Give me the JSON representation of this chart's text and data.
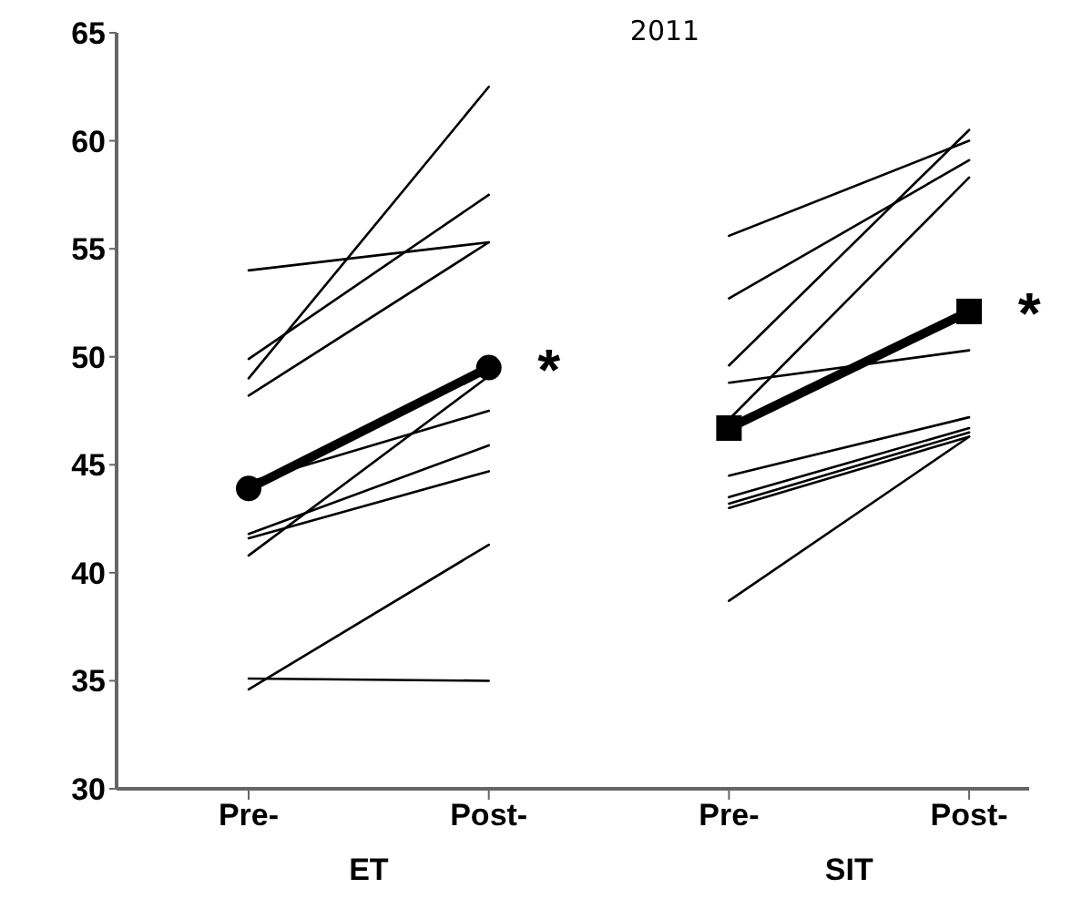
{
  "chart_data": {
    "type": "line",
    "categories": [
      "Pre-",
      "Post-",
      "Pre-",
      "Post-"
    ],
    "ylim": [
      30,
      65
    ],
    "yticks": [
      30,
      35,
      40,
      45,
      50,
      55,
      60,
      65
    ],
    "marker": "none",
    "line_style": "solid",
    "series": [
      {
        "color": "#000000",
        "values": [
          54.0,
          55.3,
          null,
          null
        ]
      },
      {
        "color": "#000000",
        "values": [
          49.9,
          57.5,
          null,
          null
        ]
      },
      {
        "color": "#000000",
        "values": [
          49.0,
          62.5,
          null,
          null
        ]
      },
      {
        "color": "#000000",
        "values": [
          48.2,
          55.3,
          null,
          null
        ]
      },
      {
        "color": "#000000",
        "values": [
          44.2,
          47.5,
          null,
          null
        ]
      },
      {
        "color": "#000000",
        "values": [
          41.8,
          45.9,
          null,
          null
        ]
      },
      {
        "color": "#000000",
        "values": [
          41.6,
          44.7,
          null,
          null
        ]
      },
      {
        "color": "#000000",
        "values": [
          40.8,
          49.1,
          null,
          null
        ]
      },
      {
        "color": "#000000",
        "values": [
          34.6,
          41.3,
          null,
          null
        ]
      },
      {
        "color": "#000000",
        "values": [
          35.1,
          35.0,
          null,
          null
        ]
      },
      {
        "color": "#000000",
        "values": [
          null,
          null,
          55.6,
          60.0
        ]
      },
      {
        "color": "#000000",
        "values": [
          null,
          null,
          52.7,
          59.1
        ]
      },
      {
        "color": "#000000",
        "values": [
          null,
          null,
          49.6,
          60.5
        ]
      },
      {
        "color": "#000000",
        "values": [
          null,
          null,
          48.8,
          50.3
        ]
      },
      {
        "color": "#000000",
        "values": [
          null,
          null,
          47.1,
          58.3
        ]
      },
      {
        "color": "#000000",
        "values": [
          null,
          null,
          44.5,
          47.2
        ]
      },
      {
        "color": "#000000",
        "values": [
          null,
          null,
          43.5,
          46.7
        ]
      },
      {
        "color": "#000000",
        "values": [
          null,
          null,
          43.2,
          46.5
        ]
      },
      {
        "color": "#000000",
        "values": [
          null,
          null,
          43.0,
          46.3
        ]
      },
      {
        "color": "#000000",
        "values": [
          null,
          null,
          38.7,
          46.3
        ]
      },
      {
        "color": "#000000",
        "values": [
          43.9,
          49.5,
          null,
          null
        ],
        "marker": "circle"
      },
      {
        "color": "#000000",
        "values": [
          null,
          null,
          46.7,
          52.1
        ],
        "marker": "square"
      }
    ],
    "annotations": [
      "ET",
      "SIT",
      "2011",
      "*",
      "*"
    ]
  }
}
